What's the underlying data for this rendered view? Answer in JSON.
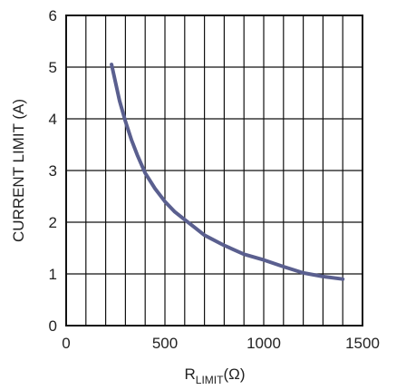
{
  "chart_data": {
    "type": "line",
    "xlabel": {
      "main": "R",
      "sub": "LIMIT",
      "tail": "(Ω)"
    },
    "ylabel": "CURRENT LIMIT (A)",
    "xlim": [
      0,
      1500
    ],
    "ylim": [
      0,
      6
    ],
    "x_ticks": [
      0,
      500,
      1000,
      1500
    ],
    "y_ticks": [
      0,
      1,
      2,
      3,
      4,
      5,
      6
    ],
    "x_tick_labels": [
      "0",
      "500",
      "1000",
      "1500"
    ],
    "y_tick_labels": [
      "0",
      "1",
      "2",
      "3",
      "4",
      "5",
      "6"
    ],
    "grid": {
      "x_step": 100,
      "y_step": 1,
      "shown": true
    },
    "series": [
      {
        "color": "#5a5f8f",
        "x": [
          230,
          250,
          270,
          300,
          330,
          360,
          400,
          450,
          500,
          550,
          600,
          650,
          700,
          800,
          900,
          1000,
          1100,
          1200,
          1300,
          1400
        ],
        "y": [
          5.05,
          4.7,
          4.35,
          3.95,
          3.6,
          3.3,
          2.95,
          2.65,
          2.4,
          2.2,
          2.05,
          1.9,
          1.75,
          1.55,
          1.38,
          1.27,
          1.14,
          1.02,
          0.95,
          0.9
        ]
      }
    ]
  }
}
